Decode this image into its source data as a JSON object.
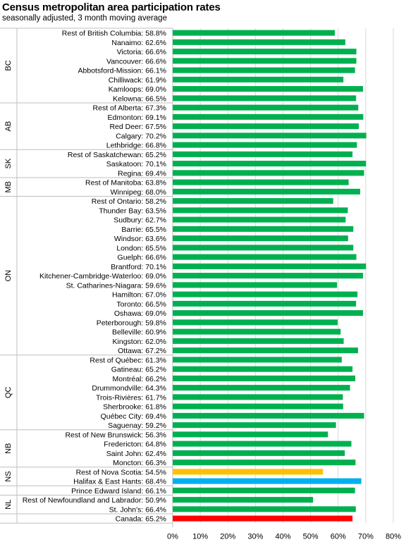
{
  "chart_data": {
    "type": "bar",
    "orientation": "horizontal",
    "title": "Census metropolitan area participation rates",
    "subtitle": "seasonally adjusted, 3 month moving average",
    "xlim": [
      0,
      80
    ],
    "xticks": [
      0,
      10,
      20,
      30,
      40,
      50,
      60,
      70,
      80
    ],
    "xtick_labels": [
      "0%",
      "10%",
      "20%",
      "30%",
      "40%",
      "50%",
      "60%",
      "70%",
      "80%"
    ],
    "grid": "vertical",
    "colors": {
      "default": "#00b050",
      "ns_rest": "#ffc000",
      "halifax": "#00b0f0",
      "canada": "#ff0000"
    },
    "groups": [
      {
        "label": "BC",
        "items": [
          {
            "name": "Rest of British Columbia",
            "label": "Rest of British Columbia: 58.8%",
            "value": 58.8
          },
          {
            "name": "Nanaimo",
            "label": "Nanaimo: 62.6%",
            "value": 62.6
          },
          {
            "name": "Victoria",
            "label": "Victoria: 66.6%",
            "value": 66.6
          },
          {
            "name": "Vancouver",
            "label": "Vancouver: 66.6%",
            "value": 66.6
          },
          {
            "name": "Abbotsford-Mission",
            "label": "Abbotsford-Mission: 66.1%",
            "value": 66.1
          },
          {
            "name": "Chilliwack",
            "label": "Chilliwack: 61.9%",
            "value": 61.9
          },
          {
            "name": "Kamloops",
            "label": "Kamloops: 69.0%",
            "value": 69.0
          },
          {
            "name": "Kelowna",
            "label": "Kelowna: 66.5%",
            "value": 66.5
          }
        ]
      },
      {
        "label": "AB",
        "items": [
          {
            "name": "Rest of Alberta",
            "label": "Rest of Alberta: 67.3%",
            "value": 67.3
          },
          {
            "name": "Edmonton",
            "label": "Edmonton: 69.1%",
            "value": 69.1
          },
          {
            "name": "Red Deer",
            "label": "Red Deer: 67.5%",
            "value": 67.5
          },
          {
            "name": "Calgary",
            "label": "Calgary: 70.2%",
            "value": 70.2
          },
          {
            "name": "Lethbridge",
            "label": "Lethbridge: 66.8%",
            "value": 66.8
          }
        ]
      },
      {
        "label": "SK",
        "items": [
          {
            "name": "Rest of Saskatchewan",
            "label": "Rest of Saskatchewan: 65.2%",
            "value": 65.2
          },
          {
            "name": "Saskatoon",
            "label": "Saskatoon: 70.1%",
            "value": 70.1
          },
          {
            "name": "Regina",
            "label": "Regina: 69.4%",
            "value": 69.4
          }
        ]
      },
      {
        "label": "MB",
        "items": [
          {
            "name": "Rest of Manitoba",
            "label": "Rest of Manitoba: 63.8%",
            "value": 63.8
          },
          {
            "name": "Winnipeg",
            "label": "Winnipeg: 68.0%",
            "value": 68.0
          }
        ]
      },
      {
        "label": "ON",
        "items": [
          {
            "name": "Rest of Ontario",
            "label": "Rest of Ontario: 58.2%",
            "value": 58.2
          },
          {
            "name": "Thunder Bay",
            "label": "Thunder Bay: 63.5%",
            "value": 63.5
          },
          {
            "name": "Sudbury",
            "label": "Sudbury: 62.7%",
            "value": 62.7
          },
          {
            "name": "Barrie",
            "label": "Barrie: 65.5%",
            "value": 65.5
          },
          {
            "name": "Windsor",
            "label": "Windsor: 63.6%",
            "value": 63.6
          },
          {
            "name": "London",
            "label": "London: 65.5%",
            "value": 65.5
          },
          {
            "name": "Guelph",
            "label": "Guelph: 66.6%",
            "value": 66.6
          },
          {
            "name": "Brantford",
            "label": "Brantford: 70.1%",
            "value": 70.1
          },
          {
            "name": "Kitchener-Cambridge-Waterloo",
            "label": "Kitchener-Cambridge-Waterloo: 69.0%",
            "value": 69.0
          },
          {
            "name": "St. Catharines-Niagara",
            "label": "St. Catharines-Niagara: 59.6%",
            "value": 59.6
          },
          {
            "name": "Hamilton",
            "label": "Hamilton: 67.0%",
            "value": 67.0
          },
          {
            "name": "Toronto",
            "label": "Toronto: 66.5%",
            "value": 66.5
          },
          {
            "name": "Oshawa",
            "label": "Oshawa: 69.0%",
            "value": 69.0
          },
          {
            "name": "Peterborough",
            "label": "Peterborough: 59.8%",
            "value": 59.8
          },
          {
            "name": "Belleville",
            "label": "Belleville: 60.9%",
            "value": 60.9
          },
          {
            "name": "Kingston",
            "label": "Kingston: 62.0%",
            "value": 62.0
          },
          {
            "name": "Ottawa",
            "label": "Ottawa: 67.2%",
            "value": 67.2
          }
        ]
      },
      {
        "label": "QC",
        "items": [
          {
            "name": "Rest of Québec",
            "label": "Rest of Québec: 61.3%",
            "value": 61.3
          },
          {
            "name": "Gatineau",
            "label": "Gatineau: 65.2%",
            "value": 65.2
          },
          {
            "name": "Montréal",
            "label": "Montréal: 66.2%",
            "value": 66.2
          },
          {
            "name": "Drummondville",
            "label": "Drummondville: 64.3%",
            "value": 64.3
          },
          {
            "name": "Trois-Rivières",
            "label": "Trois-Rivières: 61.7%",
            "value": 61.7
          },
          {
            "name": "Sherbrooke",
            "label": "Sherbrooke: 61.8%",
            "value": 61.8
          },
          {
            "name": "Québec City",
            "label": "Québec City: 69.4%",
            "value": 69.4
          },
          {
            "name": "Saguenay",
            "label": "Saguenay: 59.2%",
            "value": 59.2
          }
        ]
      },
      {
        "label": "NB",
        "items": [
          {
            "name": "Rest of New Brunswick",
            "label": "Rest of New Brunswick: 56.3%",
            "value": 56.3
          },
          {
            "name": "Fredericton",
            "label": "Fredericton: 64.8%",
            "value": 64.8
          },
          {
            "name": "Saint John",
            "label": "Saint John: 62.4%",
            "value": 62.4
          },
          {
            "name": "Moncton",
            "label": "Moncton: 66.3%",
            "value": 66.3
          }
        ]
      },
      {
        "label": "NS",
        "items": [
          {
            "name": "Rest of Nova Scotia",
            "label": "Rest of Nova Scotia: 54.5%",
            "value": 54.5,
            "color": "#ffc000"
          },
          {
            "name": "Halifax & East Hants",
            "label": "Halifax & East Hants: 68.4%",
            "value": 68.4,
            "color": "#00b0f0"
          }
        ]
      },
      {
        "label": "",
        "items": [
          {
            "name": "Prince Edward Island",
            "label": "Prince Edward Island: 66.1%",
            "value": 66.1
          }
        ]
      },
      {
        "label": "NL",
        "items": [
          {
            "name": "Rest of Newfoundland and Labrador",
            "label": "Rest of Newfoundland and Labrador: 50.9%",
            "value": 50.9
          },
          {
            "name": "St. John's",
            "label": "St. John's: 66.4%",
            "value": 66.4
          }
        ]
      },
      {
        "label": "",
        "items": [
          {
            "name": "Canada",
            "label": "Canada: 65.2%",
            "value": 65.2,
            "color": "#ff0000"
          }
        ]
      }
    ]
  }
}
